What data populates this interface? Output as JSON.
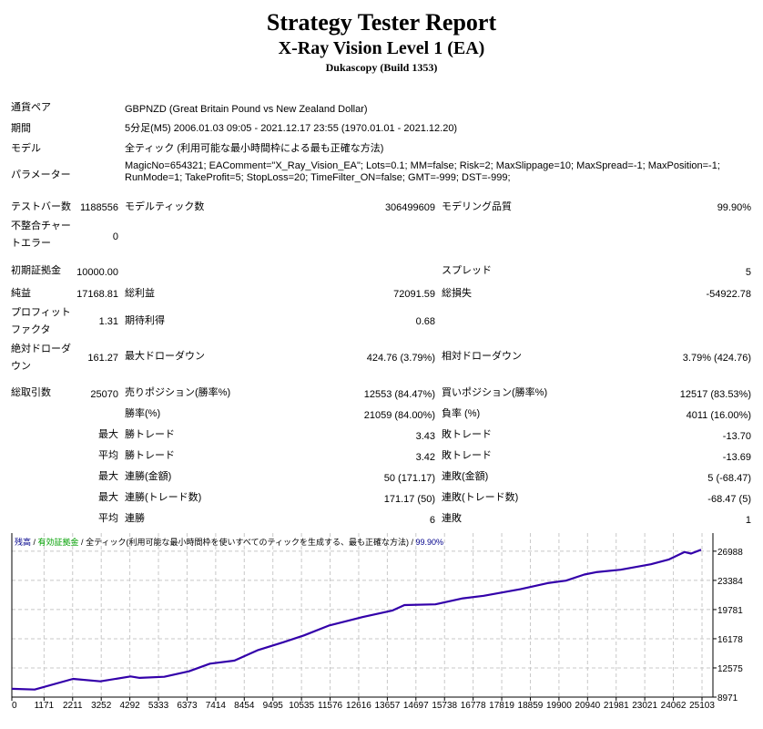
{
  "header": {
    "title": "Strategy Tester Report",
    "subtitle": "X-Ray Vision Level 1 (EA)",
    "build": "Dukascopy (Build 1353)"
  },
  "info": {
    "symbol_label": "通貨ペア",
    "symbol_value": "GBPNZD (Great Britain Pound vs New Zealand Dollar)",
    "period_label": "期間",
    "period_value": "5分足(M5) 2006.01.03 09:05 - 2021.12.17 23:55 (1970.01.01 - 2021.12.20)",
    "model_label": "モデル",
    "model_value": "全ティック (利用可能な最小時間枠による最も正確な方法)",
    "params_label": "パラメーター",
    "params_line1": "MagicNo=654321; EAComment=\"X_Ray_Vision_EA\"; Lots=0.1; MM=false; Risk=2; MaxSlippage=10; MaxSpread=-1; MaxPosition=-1;",
    "params_line2": "RunMode=1; TakeProfit=5; StopLoss=20; TimeFilter_ON=false; GMT=-999; DST=-999;"
  },
  "stats": {
    "bars_label": "テストバー数",
    "bars_value": "1188556",
    "ticks_label": "モデルティック数",
    "ticks_value": "306499609",
    "quality_label": "モデリング品質",
    "quality_value": "99.90%",
    "mismatch_label": "不整合チャートエラー",
    "mismatch_value": "0",
    "deposit_label": "初期証拠金",
    "deposit_value": "10000.00",
    "spread_label": "スプレッド",
    "spread_value": "5",
    "net_label": "純益",
    "net_value": "17168.81",
    "gross_profit_label": "総利益",
    "gross_profit_value": "72091.59",
    "gross_loss_label": "総損失",
    "gross_loss_value": "-54922.78",
    "pf_label": "プロフィットファクタ",
    "pf_value": "1.31",
    "payoff_label": "期待利得",
    "payoff_value": "0.68",
    "abs_dd_label": "絶対ドローダウン",
    "abs_dd_value": "161.27",
    "max_dd_label": "最大ドローダウン",
    "max_dd_value": "424.76 (3.79%)",
    "rel_dd_label": "相対ドローダウン",
    "rel_dd_value": "3.79% (424.76)",
    "trades_label": "総取引数",
    "trades_value": "25070",
    "short_label": "売りポジション(勝率%)",
    "short_value": "12553 (84.47%)",
    "long_label": "買いポジション(勝率%)",
    "long_value": "12517 (83.53%)",
    "win_label": "勝率(%)",
    "win_value": "21059 (84.00%)",
    "loss_label": "負率 (%)",
    "loss_value": "4011 (16.00%)",
    "max_prefix": "最大",
    "avg_prefix": "平均",
    "largest_win_label": "勝トレード",
    "largest_win_value": "3.43",
    "largest_loss_label": "敗トレード",
    "largest_loss_value": "-13.70",
    "avg_win_label": "勝トレード",
    "avg_win_value": "3.42",
    "avg_loss_label": "敗トレード",
    "avg_loss_value": "-13.69",
    "max_cons_win_label": "連勝(金額)",
    "max_cons_win_value": "50 (171.17)",
    "max_cons_loss_label": "連敗(金額)",
    "max_cons_loss_value": "5 (-68.47)",
    "max_cons_profit_label": "連勝(トレード数)",
    "max_cons_profit_value": "171.17 (50)",
    "max_cons_lossamt_label": "連敗(トレード数)",
    "max_cons_lossamt_value": "-68.47 (5)",
    "avg_cons_win_label": "連勝",
    "avg_cons_win_value": "6",
    "avg_cons_loss_label": "連敗",
    "avg_cons_loss_value": "1"
  },
  "chart_data": {
    "type": "line",
    "header": {
      "balance": "残高",
      "sep1": " / ",
      "equity": "有効証拠金",
      "sep2": " / ",
      "model": "全ティック(利用可能な最小時間枠を使いすべてのティックを生成する、最も正確な方法)",
      "sep3": " / ",
      "quality": "99.90%"
    },
    "colors": {
      "balance": "#3300aa",
      "equity": "#00a000",
      "grid": "#c8c8c8"
    },
    "xlim": [
      0,
      25500
    ],
    "ylim": [
      8971,
      29223
    ],
    "x_ticks": [
      0,
      1171,
      2211,
      3252,
      4292,
      5333,
      6373,
      7414,
      8454,
      9495,
      10535,
      11576,
      12616,
      13657,
      14697,
      15738,
      16778,
      17819,
      18859,
      19900,
      20940,
      21981,
      23021,
      24062,
      25103
    ],
    "y_ticks": [
      26988,
      23384,
      19781,
      16178,
      12575,
      8971
    ],
    "grid": true,
    "series": [
      {
        "name": "残高",
        "points": [
          [
            0,
            10000
          ],
          [
            830,
            9900
          ],
          [
            2225,
            11220
          ],
          [
            3220,
            10920
          ],
          [
            4320,
            11530
          ],
          [
            4650,
            11340
          ],
          [
            5545,
            11480
          ],
          [
            6440,
            12160
          ],
          [
            7205,
            13100
          ],
          [
            8100,
            13480
          ],
          [
            8965,
            14790
          ],
          [
            9860,
            15730
          ],
          [
            10625,
            16590
          ],
          [
            11520,
            17790
          ],
          [
            12750,
            18850
          ],
          [
            13850,
            19670
          ],
          [
            14280,
            20340
          ],
          [
            15405,
            20420
          ],
          [
            16405,
            21170
          ],
          [
            17165,
            21480
          ],
          [
            18495,
            22290
          ],
          [
            19490,
            23050
          ],
          [
            20155,
            23350
          ],
          [
            20820,
            24100
          ],
          [
            21250,
            24400
          ],
          [
            22145,
            24700
          ],
          [
            23245,
            25370
          ],
          [
            23905,
            25970
          ],
          [
            24470,
            26880
          ],
          [
            24705,
            26690
          ],
          [
            25070,
            27169
          ]
        ]
      }
    ]
  }
}
